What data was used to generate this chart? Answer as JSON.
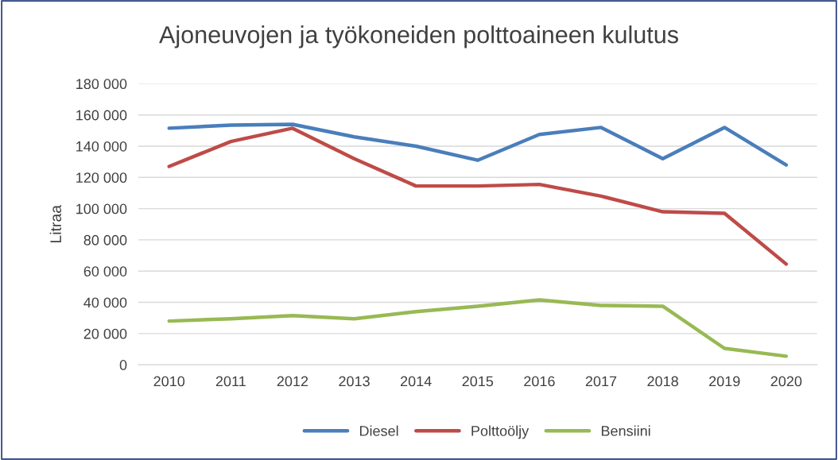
{
  "chart_data": {
    "type": "line",
    "title": "Ajoneuvojen ja työkoneiden polttoaineen kulutus",
    "ylabel": "Litraa",
    "categories": [
      "2010",
      "2011",
      "2012",
      "2013",
      "2014",
      "2015",
      "2016",
      "2017",
      "2018",
      "2019",
      "2020"
    ],
    "series": [
      {
        "name": "Diesel",
        "color": "#4a7ebb",
        "values": [
          151500,
          153500,
          154000,
          146000,
          140000,
          131000,
          147500,
          152000,
          132000,
          152000,
          128000
        ]
      },
      {
        "name": "Polttoöljy",
        "color": "#be4b48",
        "values": [
          127000,
          143000,
          151500,
          132000,
          114500,
          114500,
          115500,
          108000,
          98000,
          97000,
          64500
        ]
      },
      {
        "name": "Bensiini",
        "color": "#98b954",
        "values": [
          28000,
          29500,
          31500,
          29500,
          34000,
          37500,
          41500,
          38000,
          37500,
          10500,
          5500
        ]
      }
    ],
    "ylim": [
      0,
      180000
    ],
    "yticks": [
      {
        "value": 0,
        "label": "0"
      },
      {
        "value": 20000,
        "label": "20 000"
      },
      {
        "value": 40000,
        "label": "40 000"
      },
      {
        "value": 60000,
        "label": "60 000"
      },
      {
        "value": 80000,
        "label": "80 000"
      },
      {
        "value": 100000,
        "label": "100 000"
      },
      {
        "value": 120000,
        "label": "120 000"
      },
      {
        "value": 140000,
        "label": "140 000"
      },
      {
        "value": 160000,
        "label": "160 000"
      },
      {
        "value": 180000,
        "label": "180 000"
      }
    ],
    "grid": "y",
    "legend": "bottom",
    "marker": "none",
    "line_style": "solid"
  }
}
